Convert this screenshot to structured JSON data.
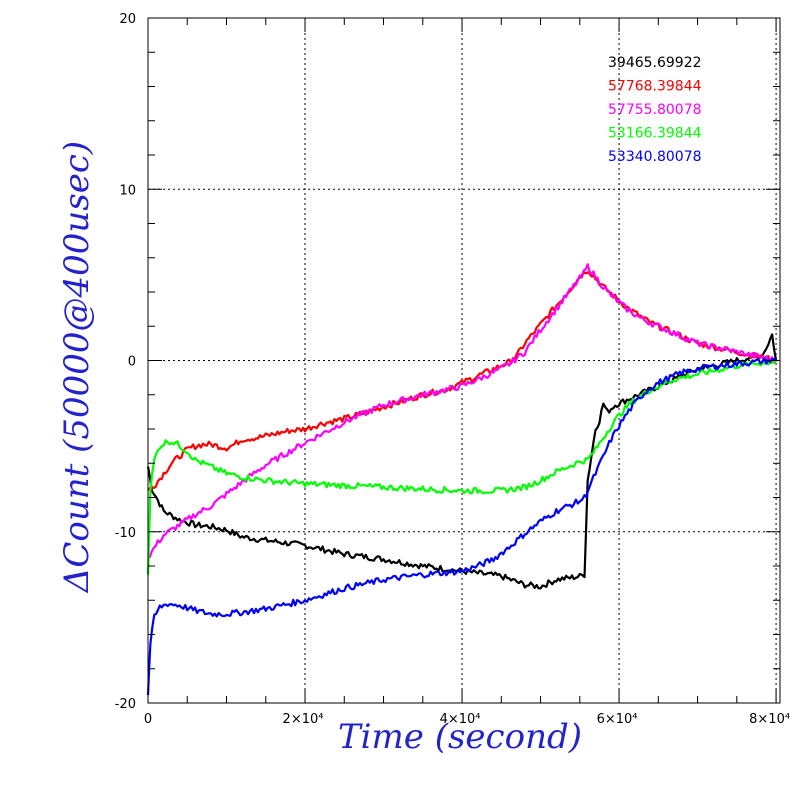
{
  "chart_data": {
    "type": "line",
    "xlabel": "Time (second)",
    "ylabel": "ΔCount (50000@400usec)",
    "label_color": "#2323cc",
    "xlim": [
      0,
      80500
    ],
    "ylim": [
      -20,
      20
    ],
    "grid": true,
    "grid_style": "dotted",
    "legend_position": "top-right",
    "x_ticks": [
      {
        "value": 0,
        "label": "0"
      },
      {
        "value": 20000,
        "label": "2×10⁴"
      },
      {
        "value": 40000,
        "label": "4×10⁴"
      },
      {
        "value": 60000,
        "label": "6×10⁴"
      },
      {
        "value": 80000,
        "label": "8×10⁴"
      }
    ],
    "y_ticks": [
      {
        "value": -20,
        "label": "-20"
      },
      {
        "value": -10,
        "label": "-10"
      },
      {
        "value": 0,
        "label": "0"
      },
      {
        "value": 10,
        "label": "10"
      },
      {
        "value": 20,
        "label": "20"
      }
    ],
    "series": [
      {
        "name": "39465.69922",
        "color": "#000000",
        "x": [
          0,
          500,
          2000,
          4000,
          6000,
          8000,
          10000,
          12000,
          15000,
          20000,
          25000,
          30000,
          35000,
          40000,
          45000,
          48000,
          50000,
          52000,
          55000,
          55600,
          56000,
          56500,
          57000,
          57500,
          58000,
          58500,
          59000,
          59500,
          60000,
          60500,
          61000,
          61500,
          62000,
          62500,
          63000,
          63500,
          64000,
          64500,
          65000,
          65500,
          66000,
          66500,
          67000,
          67500,
          68000,
          68500,
          69000,
          69500,
          70000,
          70500,
          71000,
          71500,
          72000,
          72500,
          73000,
          73500,
          74000,
          74500,
          75000,
          75500,
          76000,
          76500,
          77000,
          77500,
          78000,
          78500,
          79000,
          79500,
          80000
        ],
        "y": [
          -6.2,
          -7.5,
          -8.8,
          -9.3,
          -9.6,
          -9.7,
          -9.9,
          -10.3,
          -10.5,
          -10.8,
          -11.3,
          -11.6,
          -12.0,
          -12.3,
          -12.6,
          -13.1,
          -13.2,
          -12.8,
          -12.6,
          -12.5,
          -7.0,
          -5.5,
          -4.0,
          -3.5,
          -2.5,
          -3.0,
          -2.8,
          -2.6,
          -2.5,
          -2.4,
          -2.3,
          -2.2,
          -2.1,
          -2.0,
          -1.9,
          -1.8,
          -1.7,
          -1.6,
          -1.5,
          -1.4,
          -1.3,
          -1.2,
          -1.1,
          -1.0,
          -0.9,
          -0.8,
          -0.7,
          -0.6,
          -0.5,
          -0.45,
          -0.4,
          -0.35,
          -0.3,
          -0.25,
          -0.2,
          -0.15,
          -0.1,
          -0.05,
          0.0,
          0.05,
          0.1,
          0.15,
          0.2,
          0.25,
          0.3,
          0.5,
          1.0,
          1.5,
          0.0
        ]
      },
      {
        "name": "57768.39844",
        "color": "#ff0000",
        "x": [
          0,
          1000,
          2000,
          3000,
          4000,
          5000,
          6000,
          7000,
          8000,
          9000,
          10000,
          11000,
          12000,
          14000,
          16000,
          18000,
          20000,
          22000,
          25000,
          28000,
          30000,
          33000,
          35000,
          38000,
          40000,
          42000,
          44000,
          45000,
          46000,
          47000,
          48000,
          50000,
          52000,
          54000,
          55000,
          55500,
          56000,
          57000,
          58000,
          59000,
          60000,
          61000,
          62000,
          63000,
          64000,
          65000,
          66000,
          67000,
          68000,
          69000,
          70000,
          71000,
          72000,
          73000,
          74000,
          75000,
          76000,
          77000,
          78000,
          79000,
          80000
        ],
        "y": [
          -7.6,
          -7.2,
          -6.6,
          -6.0,
          -5.6,
          -5.2,
          -5.0,
          -4.9,
          -4.9,
          -5.0,
          -5.1,
          -4.9,
          -4.6,
          -4.5,
          -4.3,
          -4.1,
          -4.0,
          -3.7,
          -3.4,
          -3.0,
          -2.7,
          -2.3,
          -2.0,
          -1.7,
          -1.3,
          -0.9,
          -0.5,
          -0.3,
          -0.1,
          0.3,
          1.0,
          2.1,
          3.2,
          4.3,
          4.9,
          5.1,
          5.3,
          4.8,
          4.3,
          3.9,
          3.5,
          3.1,
          2.8,
          2.5,
          2.2,
          2.0,
          1.8,
          1.6,
          1.4,
          1.2,
          1.0,
          0.9,
          0.8,
          0.7,
          0.6,
          0.5,
          0.4,
          0.3,
          0.2,
          0.1,
          0.0
        ]
      },
      {
        "name": "57755.80078",
        "color": "#ff00ff",
        "x": [
          0,
          1000,
          2000,
          4000,
          6000,
          8000,
          10000,
          12000,
          15000,
          20000,
          25000,
          30000,
          35000,
          40000,
          44000,
          46000,
          48000,
          50000,
          52000,
          54000,
          55500,
          56000,
          57000,
          58000,
          59000,
          60000,
          61000,
          62000,
          63000,
          64000,
          65000,
          66000,
          67000,
          68000,
          69000,
          70000,
          71000,
          72000,
          73000,
          74000,
          75000,
          76000,
          77000,
          78000,
          79000,
          80000
        ],
        "y": [
          -11.5,
          -10.8,
          -10.2,
          -9.6,
          -9.0,
          -8.5,
          -7.8,
          -7.1,
          -6.1,
          -4.8,
          -3.6,
          -2.6,
          -2.0,
          -1.5,
          -0.7,
          -0.2,
          0.5,
          1.8,
          3.0,
          4.2,
          5.1,
          5.5,
          4.9,
          4.3,
          3.8,
          3.4,
          3.0,
          2.7,
          2.4,
          2.2,
          2.0,
          1.8,
          1.6,
          1.4,
          1.2,
          1.0,
          0.9,
          0.8,
          0.7,
          0.6,
          0.5,
          0.4,
          0.3,
          0.2,
          0.1,
          0.0
        ]
      },
      {
        "name": "53166.39844",
        "color": "#00ff00",
        "x": [
          0,
          300,
          800,
          1500,
          2500,
          3500,
          5000,
          6000,
          8000,
          10000,
          12000,
          15000,
          20000,
          25000,
          30000,
          35000,
          40000,
          45000,
          48000,
          50000,
          52000,
          54000,
          55000,
          56000,
          57000,
          58000,
          59000,
          60000,
          61000,
          62000,
          63000,
          64000,
          65000,
          66000,
          67000,
          68000,
          69000,
          70000,
          71000,
          72000,
          73000,
          74000,
          75000,
          76000,
          77000,
          78000,
          79000,
          80000
        ],
        "y": [
          -12.5,
          -7.5,
          -5.8,
          -5.0,
          -4.7,
          -4.8,
          -5.3,
          -5.8,
          -6.2,
          -6.6,
          -6.8,
          -7.0,
          -7.2,
          -7.3,
          -7.4,
          -7.5,
          -7.6,
          -7.6,
          -7.4,
          -7.0,
          -6.5,
          -6.1,
          -5.9,
          -5.8,
          -5.2,
          -4.5,
          -3.8,
          -3.2,
          -2.7,
          -2.3,
          -2.0,
          -1.7,
          -1.5,
          -1.3,
          -1.1,
          -1.0,
          -0.9,
          -0.8,
          -0.7,
          -0.6,
          -0.5,
          -0.4,
          -0.3,
          -0.25,
          -0.2,
          -0.15,
          -0.1,
          0.0
        ]
      },
      {
        "name": "53340.80078",
        "color": "#0000ff",
        "x": [
          0,
          300,
          800,
          1500,
          2500,
          4000,
          6000,
          8000,
          10000,
          12000,
          15000,
          20000,
          25000,
          30000,
          35000,
          40000,
          42000,
          44000,
          46000,
          48000,
          50000,
          52000,
          54000,
          55000,
          55600,
          56000,
          57000,
          58000,
          59000,
          60000,
          61000,
          62000,
          63000,
          64000,
          65000,
          66000,
          67000,
          68000,
          69000,
          70000,
          71000,
          72000,
          73000,
          74000,
          75000,
          76000,
          77000,
          78000,
          79000,
          80000
        ],
        "y": [
          -19.5,
          -16.5,
          -15.0,
          -14.4,
          -14.2,
          -14.3,
          -14.6,
          -14.8,
          -14.8,
          -14.7,
          -14.5,
          -14.0,
          -13.3,
          -12.8,
          -12.5,
          -12.3,
          -12.0,
          -11.6,
          -10.9,
          -10.1,
          -9.4,
          -8.8,
          -8.4,
          -8.2,
          -8.0,
          -7.6,
          -6.6,
          -5.6,
          -4.6,
          -3.8,
          -3.1,
          -2.5,
          -2.0,
          -1.6,
          -1.3,
          -1.1,
          -0.9,
          -0.7,
          -0.6,
          -0.5,
          -0.4,
          -0.35,
          -0.3,
          -0.25,
          -0.2,
          -0.15,
          -0.1,
          -0.05,
          -0.02,
          0.0
        ]
      }
    ]
  }
}
